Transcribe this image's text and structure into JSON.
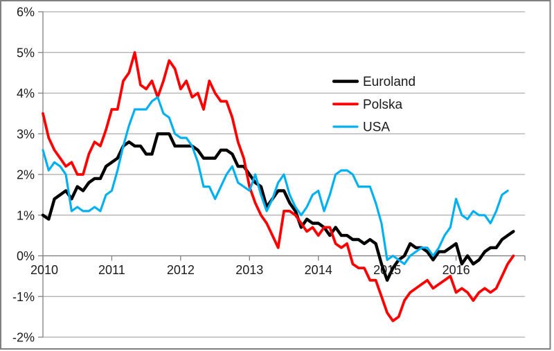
{
  "chart_data": {
    "type": "line",
    "title": "",
    "xlabel": "",
    "ylabel": "",
    "ylim": [
      -2,
      6
    ],
    "y_tick_step": 1,
    "y_tick_labels": [
      "6%",
      "5%",
      "4%",
      "3%",
      "2%",
      "1%",
      "0%",
      "-1%",
      "-2%"
    ],
    "x_tick_labels": [
      "2010",
      "2011",
      "2012",
      "2013",
      "2014",
      "2015",
      "2016"
    ],
    "x_months_total": 84,
    "x_start": "2010-01",
    "grid": "horizontal-only",
    "legend_position": "inside-upper-right",
    "series": [
      {
        "name": "Euroland",
        "color": "#000000",
        "values": [
          1.0,
          0.9,
          1.4,
          1.5,
          1.6,
          1.4,
          1.7,
          1.6,
          1.8,
          1.9,
          1.9,
          2.2,
          2.3,
          2.4,
          2.7,
          2.8,
          2.7,
          2.7,
          2.5,
          2.5,
          3.0,
          3.0,
          3.0,
          2.7,
          2.7,
          2.7,
          2.7,
          2.6,
          2.4,
          2.4,
          2.4,
          2.6,
          2.6,
          2.5,
          2.2,
          2.2,
          2.0,
          1.8,
          1.7,
          1.2,
          1.4,
          1.6,
          1.6,
          1.3,
          1.1,
          0.7,
          0.9,
          0.8,
          0.8,
          0.7,
          0.5,
          0.7,
          0.5,
          0.5,
          0.4,
          0.4,
          0.3,
          0.4,
          0.3,
          -0.2,
          -0.6,
          -0.3,
          -0.1,
          0.0,
          0.3,
          0.2,
          0.2,
          0.1,
          -0.1,
          0.1,
          0.1,
          0.2,
          0.3,
          -0.2,
          0.0,
          -0.2,
          -0.1,
          0.1,
          0.2,
          0.2,
          0.4,
          0.5,
          0.6
        ]
      },
      {
        "name": "Polska",
        "color": "#FF0000",
        "values": [
          3.5,
          2.9,
          2.6,
          2.4,
          2.2,
          2.3,
          2.0,
          2.0,
          2.5,
          2.8,
          2.7,
          3.1,
          3.6,
          3.6,
          4.3,
          4.5,
          5.0,
          4.2,
          4.1,
          4.3,
          3.9,
          4.3,
          4.8,
          4.6,
          4.1,
          4.3,
          3.9,
          4.0,
          3.6,
          4.3,
          4.0,
          3.8,
          3.8,
          3.4,
          2.8,
          2.4,
          1.7,
          1.3,
          1.0,
          0.8,
          0.5,
          0.2,
          1.1,
          1.1,
          1.0,
          0.8,
          0.6,
          0.7,
          0.5,
          0.7,
          0.7,
          0.3,
          0.2,
          0.3,
          -0.2,
          -0.3,
          -0.3,
          -0.6,
          -0.6,
          -1.0,
          -1.4,
          -1.6,
          -1.5,
          -1.1,
          -0.9,
          -0.8,
          -0.7,
          -0.6,
          -0.8,
          -0.7,
          -0.6,
          -0.5,
          -0.9,
          -0.8,
          -0.9,
          -1.1,
          -0.9,
          -0.8,
          -0.9,
          -0.8,
          -0.5,
          -0.2,
          0.0
        ]
      },
      {
        "name": "USA",
        "color": "#00B0F0",
        "values": [
          2.6,
          2.1,
          2.3,
          2.2,
          2.0,
          1.1,
          1.2,
          1.1,
          1.1,
          1.2,
          1.1,
          1.5,
          1.6,
          2.1,
          2.7,
          3.2,
          3.6,
          3.6,
          3.6,
          3.8,
          3.9,
          3.5,
          3.4,
          3.0,
          2.9,
          2.9,
          2.7,
          2.3,
          1.7,
          1.7,
          1.4,
          1.7,
          2.0,
          2.2,
          1.8,
          1.7,
          1.6,
          2.0,
          1.5,
          1.1,
          1.4,
          1.8,
          2.0,
          1.5,
          1.2,
          1.0,
          1.2,
          1.5,
          1.6,
          1.1,
          1.5,
          2.0,
          2.1,
          2.1,
          2.0,
          1.7,
          1.7,
          1.7,
          1.3,
          0.8,
          -0.1,
          0.0,
          -0.1,
          -0.2,
          0.0,
          0.1,
          0.2,
          0.2,
          0.0,
          0.2,
          0.5,
          0.7,
          1.4,
          1.0,
          0.9,
          1.1,
          1.0,
          1.0,
          0.8,
          1.1,
          1.5,
          1.6
        ]
      }
    ],
    "colors": {
      "gridline": "#ACACAC",
      "axis": "#808080",
      "frame_border": "#7F7F7F"
    }
  }
}
